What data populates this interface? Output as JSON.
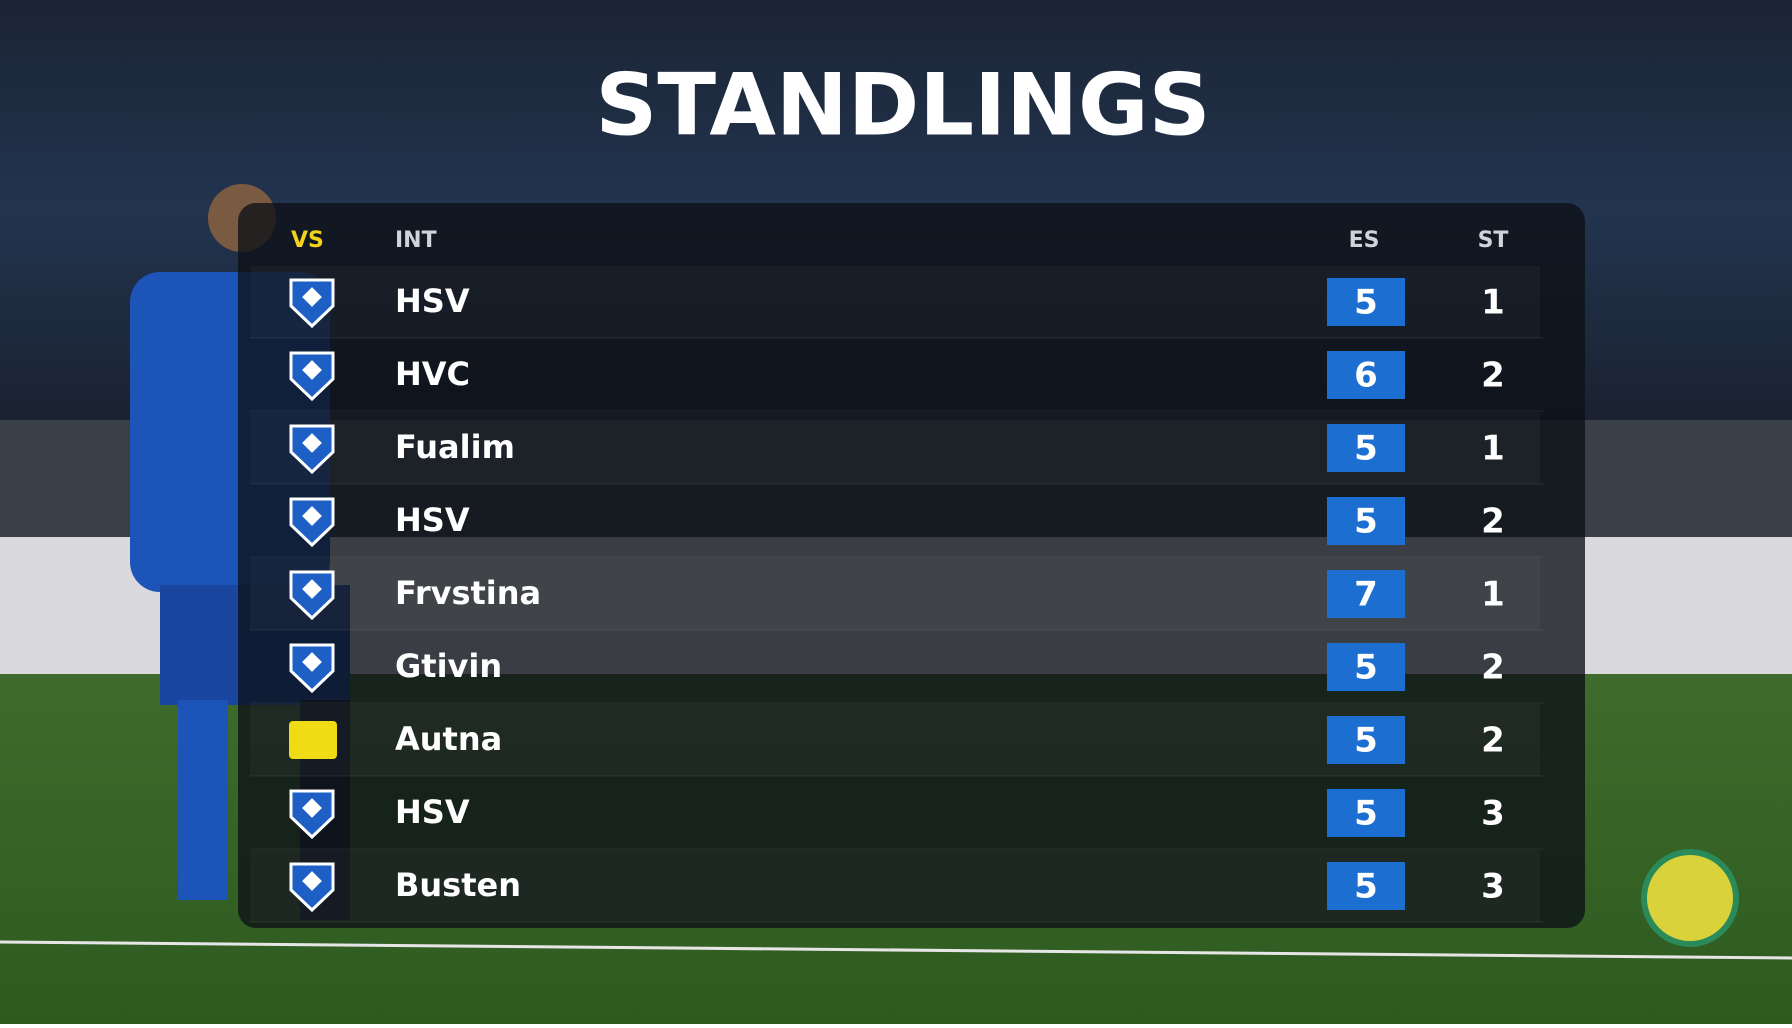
{
  "header": {
    "title": "STANDLINGS"
  },
  "table": {
    "columns": {
      "badge": "VS",
      "team": "INT",
      "es": "ES",
      "st": "ST"
    },
    "rows": [
      {
        "team": "HSV",
        "es": 5,
        "st": 1
      },
      {
        "team": "HVC",
        "es": 6,
        "st": 2
      },
      {
        "team": "Fualim",
        "es": 5,
        "st": 1
      },
      {
        "team": "HSV",
        "es": 5,
        "st": 2
      },
      {
        "team": "Frvstina",
        "es": 7,
        "st": 1
      },
      {
        "team": "Gtivin",
        "es": 5,
        "st": 2
      },
      {
        "team": "Autna",
        "es": 5,
        "st": 2
      },
      {
        "team": "HSV",
        "es": 5,
        "st": 3
      },
      {
        "team": "Busten",
        "es": 5,
        "st": 3
      }
    ]
  }
}
